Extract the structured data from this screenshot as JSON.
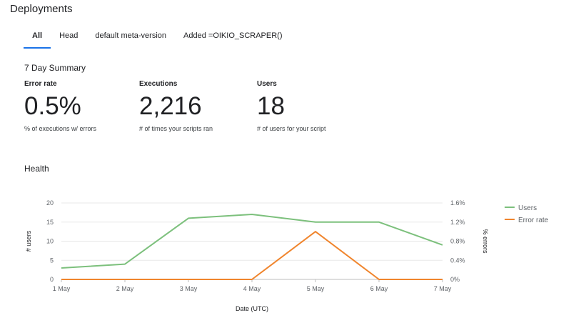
{
  "header": {
    "title": "Deployments"
  },
  "tabs": [
    {
      "label": "All",
      "active": true
    },
    {
      "label": "Head",
      "active": false
    },
    {
      "label": "default meta-version",
      "active": false
    },
    {
      "label": "Added =OIKIO_SCRAPER()",
      "active": false
    }
  ],
  "summary": {
    "title": "7 Day Summary",
    "metrics": [
      {
        "label": "Error rate",
        "value": "0.5%",
        "description": "% of executions w/ errors"
      },
      {
        "label": "Executions",
        "value": "2,216",
        "description": "# of times your scripts ran"
      },
      {
        "label": "Users",
        "value": "18",
        "description": "# of users for your script"
      }
    ]
  },
  "health": {
    "title": "Health"
  },
  "chart_data": {
    "type": "line",
    "categories": [
      "1 May",
      "2 May",
      "3 May",
      "4 May",
      "5 May",
      "6 May",
      "7 May"
    ],
    "xlabel": "Date (UTC)",
    "ylabel": "# users",
    "y2label": "% errors",
    "ylim": [
      0,
      20
    ],
    "yticks": [
      "0",
      "5",
      "10",
      "15",
      "20"
    ],
    "y2lim": [
      0,
      1.6
    ],
    "y2ticks": [
      "0%",
      "0.4%",
      "0.8%",
      "1.2%",
      "1.6%"
    ],
    "legend_position": "right",
    "series": [
      {
        "name": "Users",
        "axis": "left",
        "color": "#7cc07c",
        "values": [
          3,
          4,
          16,
          17,
          15,
          15,
          9
        ]
      },
      {
        "name": "Error rate",
        "axis": "right",
        "color": "#f0852d",
        "values": [
          0,
          0,
          0,
          0,
          1.0,
          0,
          0
        ]
      }
    ]
  }
}
